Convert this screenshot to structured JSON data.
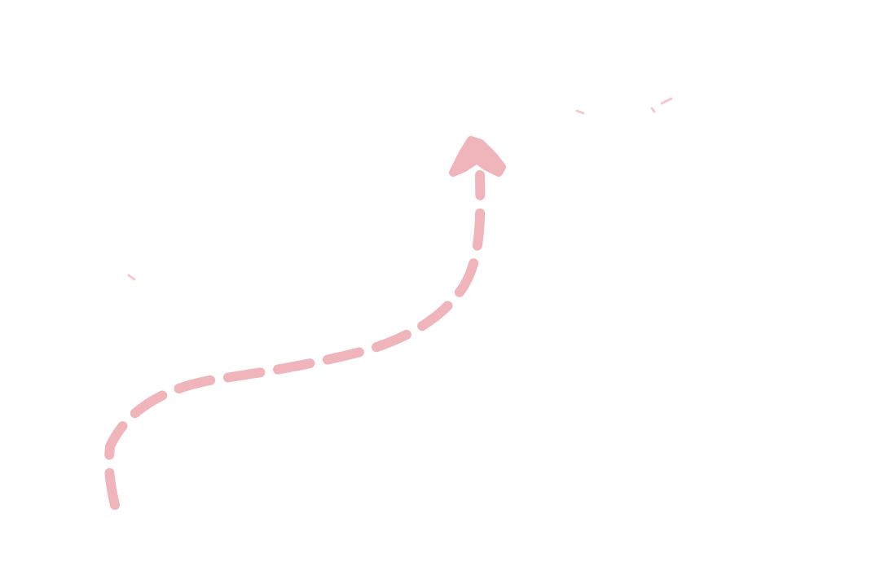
{
  "canvas": {
    "background": "#ffffff",
    "arrow_color": "#f0b4bb",
    "arrow_style": "dashed",
    "arrow_direction": "up"
  }
}
